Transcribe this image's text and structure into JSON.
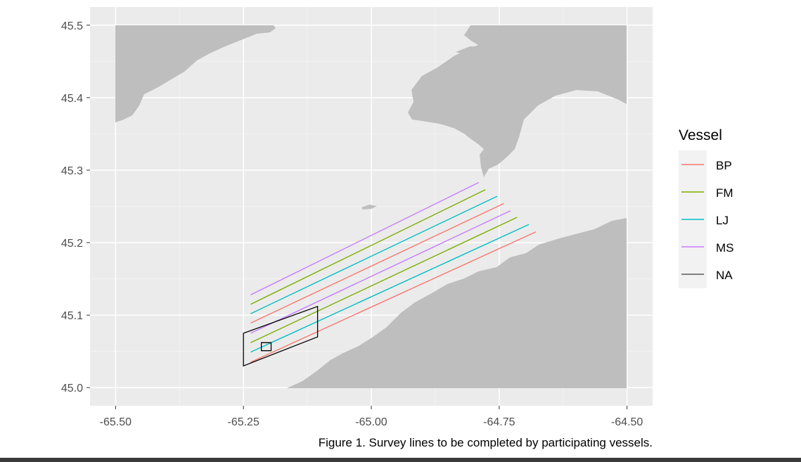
{
  "chart_data": {
    "type": "line",
    "title": "",
    "xlabel": "",
    "ylabel": "",
    "xlim": [
      -65.55,
      -64.45
    ],
    "ylim": [
      44.975,
      45.525
    ],
    "x_ticks": [
      -65.5,
      -65.25,
      -65.0,
      -64.75,
      -64.5
    ],
    "x_tick_labels": [
      "-65.50",
      "-65.25",
      "-65.00",
      "-64.75",
      "-64.50"
    ],
    "y_ticks": [
      45.0,
      45.1,
      45.2,
      45.3,
      45.4,
      45.5
    ],
    "y_tick_labels": [
      "45.0",
      "45.1",
      "45.2",
      "45.3",
      "45.4",
      "45.5"
    ],
    "grid": true,
    "legend": {
      "title": "Vessel",
      "placement": "right",
      "entries": [
        {
          "name": "BP",
          "color": "#F8766D"
        },
        {
          "name": "FM",
          "color": "#7CAE00"
        },
        {
          "name": "LJ",
          "color": "#00BFC4"
        },
        {
          "name": "MS",
          "color": "#C77CFF"
        },
        {
          "name": "NA",
          "color": "#5a5a5a"
        }
      ]
    },
    "series": [
      {
        "name": "MS",
        "color": "#C77CFF",
        "x": [
          -65.236,
          -64.79
        ],
        "y": [
          45.128,
          45.283
        ]
      },
      {
        "name": "FM",
        "color": "#7CAE00",
        "x": [
          -65.236,
          -64.777
        ],
        "y": [
          45.115,
          45.273
        ]
      },
      {
        "name": "LJ",
        "color": "#00BFC4",
        "x": [
          -65.236,
          -64.754
        ],
        "y": [
          45.102,
          45.264
        ]
      },
      {
        "name": "BP",
        "color": "#F8766D",
        "x": [
          -65.236,
          -64.741
        ],
        "y": [
          45.089,
          45.254
        ]
      },
      {
        "name": "MS",
        "color": "#C77CFF",
        "x": [
          -65.236,
          -64.728
        ],
        "y": [
          45.075,
          45.244
        ]
      },
      {
        "name": "FM",
        "color": "#7CAE00",
        "x": [
          -65.236,
          -64.715
        ],
        "y": [
          45.062,
          45.235
        ]
      },
      {
        "name": "LJ",
        "color": "#00BFC4",
        "x": [
          -65.236,
          -64.692
        ],
        "y": [
          45.049,
          45.225
        ]
      },
      {
        "name": "BP",
        "color": "#F8766D",
        "x": [
          -65.236,
          -64.678
        ],
        "y": [
          45.035,
          45.215
        ]
      }
    ],
    "polygons": [
      {
        "name": "NA",
        "color": "#000000",
        "points": [
          [
            -65.25,
            45.075
          ],
          [
            -65.105,
            45.112
          ],
          [
            -65.105,
            45.07
          ],
          [
            -65.25,
            45.03
          ]
        ]
      },
      {
        "name": "NA",
        "color": "#000000",
        "points": [
          [
            -65.215,
            45.062
          ],
          [
            -65.196,
            45.062
          ],
          [
            -65.196,
            45.051
          ],
          [
            -65.215,
            45.051
          ]
        ]
      }
    ],
    "land_color": "#bebebe",
    "panel_color": "#ebebeb"
  },
  "caption": "Figure 1. Survey lines to be completed by participating vessels."
}
